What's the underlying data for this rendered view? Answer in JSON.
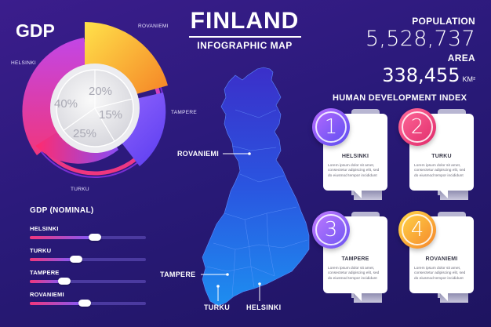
{
  "gdp": {
    "title": "GDP",
    "regions": [
      {
        "name": "ROVANIEMI",
        "percent": "",
        "color": "#f7b52e"
      },
      {
        "name": "TAMPERE",
        "percent": "15%",
        "color": "#7c56f5"
      },
      {
        "name": "TURKU",
        "percent": "25%",
        "color": "#f0307e"
      },
      {
        "name": "HELSINKI",
        "percent": "40%",
        "color": "#b043e0"
      }
    ],
    "inner_labels": [
      "20%",
      "15%",
      "25%",
      "40%"
    ]
  },
  "nominal": {
    "title": "GDP (NOMINAL)",
    "items": [
      {
        "label": "HELSINKI",
        "level": 0.56
      },
      {
        "label": "TURKU",
        "level": 0.4
      },
      {
        "label": "TAMPERE",
        "level": 0.3
      },
      {
        "label": "ROVANIEMI",
        "level": 0.47
      }
    ]
  },
  "title": {
    "main": "FINLAND",
    "sub": "INFOGRAPHIC MAP"
  },
  "map": {
    "cities": {
      "rovaniemi": "ROVANIEMI",
      "tampere": "TAMPERE",
      "turku": "TURKU",
      "helsinki": "HELSINKI"
    }
  },
  "stats": {
    "population_label": "POPULATION",
    "population_value": "5,528,737",
    "area_label": "AREA",
    "area_value": "338,455",
    "area_unit": "KM²"
  },
  "hdi": {
    "title": "HUMAN DEVELOPMENT INDEX",
    "cards": [
      {
        "number": "1",
        "city": "HELSINKI",
        "text": "Lorem ipsum dolor sit amet, consectetur adipiscing elit, sed do eiusmod tempor incididunt"
      },
      {
        "number": "2",
        "city": "TURKU",
        "text": "Lorem ipsum dolor sit amet, consectetur adipiscing elit, sed do eiusmod tempor incididunt"
      },
      {
        "number": "3",
        "city": "TAMPERE",
        "text": "Lorem ipsum dolor sit amet, consectetur adipiscing elit, sed do eiusmod tempor incididunt"
      },
      {
        "number": "4",
        "city": "ROVANIEMI",
        "text": "Lorem ipsum dolor sit amet, consectetur adipiscing elit, sed do eiusmod tempor incididunt"
      }
    ]
  }
}
